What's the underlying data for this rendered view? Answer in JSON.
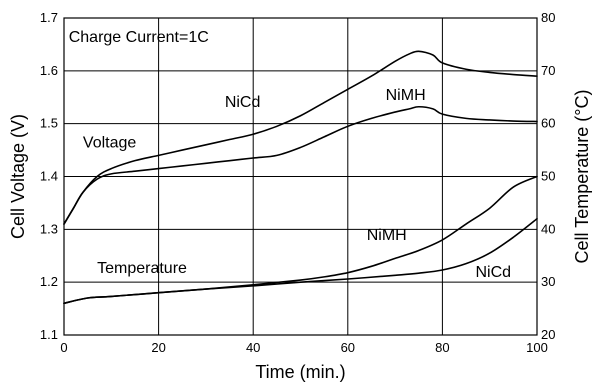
{
  "chart_data": {
    "type": "line",
    "xlabel": "Time (min.)",
    "ylabel": "Cell Voltage (V)",
    "y2label": "Cell Temperature (°C)",
    "xlim": [
      0,
      100
    ],
    "ylim": [
      1.1,
      1.7
    ],
    "y2lim": [
      20,
      80
    ],
    "x_ticks": [
      "0",
      "20",
      "40",
      "60",
      "80",
      "100"
    ],
    "y_ticks": [
      "1.1",
      "1.2",
      "1.3",
      "1.4",
      "1.5",
      "1.6",
      "1.7"
    ],
    "y2_ticks": [
      "20",
      "30",
      "40",
      "50",
      "60",
      "70",
      "80"
    ],
    "grid": true,
    "series": [
      {
        "name": "NiCd",
        "axis": "left",
        "x": [
          0,
          2,
          4,
          7,
          10,
          15,
          20,
          25,
          30,
          35,
          40,
          45,
          50,
          55,
          60,
          65,
          70,
          73,
          75,
          78,
          80,
          85,
          90,
          95,
          100
        ],
        "y": [
          1.31,
          1.34,
          1.37,
          1.4,
          1.415,
          1.43,
          1.44,
          1.45,
          1.46,
          1.47,
          1.48,
          1.495,
          1.515,
          1.54,
          1.565,
          1.59,
          1.618,
          1.632,
          1.637,
          1.63,
          1.615,
          1.603,
          1.597,
          1.593,
          1.59
        ]
      },
      {
        "name": "NiMH",
        "axis": "left",
        "x": [
          0,
          2,
          4,
          7,
          10,
          15,
          20,
          25,
          30,
          35,
          40,
          45,
          50,
          55,
          60,
          65,
          70,
          73,
          75,
          78,
          80,
          85,
          90,
          95,
          100
        ],
        "y": [
          1.31,
          1.34,
          1.37,
          1.395,
          1.405,
          1.41,
          1.415,
          1.42,
          1.425,
          1.43,
          1.435,
          1.44,
          1.455,
          1.475,
          1.495,
          1.51,
          1.522,
          1.528,
          1.532,
          1.528,
          1.518,
          1.51,
          1.507,
          1.505,
          1.504
        ]
      },
      {
        "name": "NiMH",
        "axis": "right",
        "x": [
          0,
          5,
          10,
          20,
          30,
          40,
          50,
          55,
          60,
          65,
          70,
          75,
          80,
          85,
          90,
          95,
          100
        ],
        "y": [
          26,
          27,
          27.3,
          28,
          28.7,
          29.5,
          30.4,
          31,
          31.8,
          33,
          34.5,
          36,
          38,
          41,
          44,
          48,
          50
        ]
      },
      {
        "name": "NiCd",
        "axis": "right",
        "x": [
          0,
          5,
          10,
          20,
          30,
          40,
          50,
          60,
          70,
          75,
          80,
          85,
          90,
          95,
          100
        ],
        "y": [
          26,
          27,
          27.3,
          28,
          28.7,
          29.3,
          30,
          30.6,
          31.3,
          31.7,
          32.3,
          33.5,
          35.5,
          38.5,
          42
        ]
      }
    ],
    "annotations": [
      {
        "text": "Charge Current=1C",
        "x": 1,
        "y": 1.655
      },
      {
        "text": "NiCd",
        "x": 34,
        "y": 1.532
      },
      {
        "text": "NiMH",
        "x": 68,
        "y": 1.545
      },
      {
        "text": "Voltage",
        "x": 4,
        "y": 1.455
      },
      {
        "text": "Temperature",
        "x": 7,
        "y": 1.217
      },
      {
        "text": "NiMH",
        "x": 64,
        "y": 1.28
      },
      {
        "text": "NiCd",
        "x": 87,
        "y": 1.21
      }
    ]
  }
}
